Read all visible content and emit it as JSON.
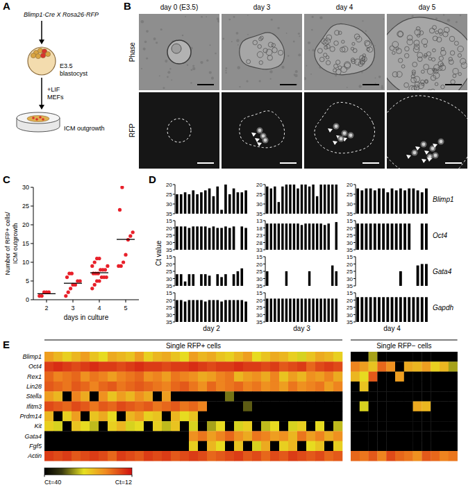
{
  "panel_a": {
    "letter": "A",
    "cross": "Blimp1-Cre X Rosa26-RFP",
    "stage": [
      "E3.5",
      "blastocyst"
    ],
    "culture": [
      "+LIF",
      "MEFs"
    ],
    "result": "ICM outgrowth"
  },
  "panel_b": {
    "letter": "B",
    "columns": [
      "day 0 (E3.5)",
      "day 3",
      "day 4",
      "day 5"
    ],
    "rows": [
      "Phase",
      "RFP"
    ]
  },
  "chart_data": [
    {
      "type": "scatter",
      "letter": "C",
      "xlabel": "days in culture",
      "ylabel": "Number of RFP+ cells/ ICM outgrowth",
      "categories": [
        "2",
        "3",
        "4",
        "5"
      ],
      "values": [
        [
          1,
          1,
          2,
          2,
          2
        ],
        [
          1,
          2,
          3,
          4,
          4,
          5,
          5,
          6,
          7,
          7
        ],
        [
          3,
          4,
          5,
          5,
          6,
          6,
          6,
          7,
          7,
          7,
          8,
          8,
          8,
          9,
          9,
          10,
          11,
          11
        ],
        [
          9,
          9,
          10,
          12,
          16,
          17,
          18,
          24,
          30
        ]
      ],
      "means": [
        1.6,
        4.4,
        7.2,
        16.1
      ],
      "color": "#e8202a",
      "marker": "circle",
      "ylim": [
        0,
        30
      ],
      "yticks": [
        0,
        5,
        10,
        15,
        20,
        25,
        30
      ]
    },
    {
      "type": "bar",
      "letter": "D",
      "ylabel": "Ct value",
      "rows": [
        "Blimp1",
        "Oct4",
        "Gata4",
        "Gapdh"
      ],
      "columns": [
        "day 2",
        "day 3",
        "day 4"
      ],
      "color": "#000000",
      "panels": [
        [
          {
            "ylim": [
              35,
              20
            ],
            "yticks": [
              20,
              25,
              30,
              35
            ],
            "values": [
              25,
              25,
              24,
              25,
              23,
              25,
              24,
              23,
              22,
              26,
              21,
              33,
              20,
              25,
              22,
              24,
              24,
              23
            ]
          },
          {
            "ylim": [
              35,
              20
            ],
            "yticks": [
              20,
              25,
              30,
              35
            ],
            "values": [
              21,
              22,
              21,
              29,
              21,
              20,
              20,
              20,
              22,
              20,
              20,
              21,
              20,
              26,
              20,
              20,
              20,
              20,
              20
            ]
          },
          {
            "ylim": [
              35,
              20
            ],
            "yticks": [
              20,
              25,
              30,
              35
            ],
            "values": [
              22,
              23,
              22,
              22,
              23,
              22,
              22,
              24,
              22,
              23,
              22,
              23,
              22,
              22,
              23,
              24,
              22
            ]
          }
        ],
        [
          {
            "ylim": [
              35,
              15
            ],
            "yticks": [
              15,
              20,
              25,
              30,
              35
            ],
            "values": [
              19,
              19,
              19,
              20,
              19,
              19,
              19,
              19,
              20,
              19,
              20,
              20,
              19,
              20,
              19,
              null,
              19,
              20
            ]
          },
          {
            "ylim": [
              33,
              13
            ],
            "yticks": [
              13,
              18,
              23,
              28,
              33
            ],
            "values": [
              15,
              15,
              15,
              15,
              15,
              15,
              15,
              15,
              15,
              16,
              15,
              15,
              15,
              15,
              15,
              16,
              15,
              null,
              14
            ]
          },
          {
            "ylim": [
              35,
              15
            ],
            "yticks": [
              15,
              20,
              25,
              30,
              35
            ],
            "values": [
              17,
              17,
              17,
              17,
              17,
              17,
              17,
              17,
              17,
              17,
              17,
              17,
              17,
              null,
              null,
              17,
              17
            ]
          }
        ],
        [
          {
            "ylim": [
              35,
              15
            ],
            "yticks": [
              15,
              20,
              25,
              30,
              35
            ],
            "values": [
              27,
              27,
              32,
              27,
              27,
              null,
              27,
              27,
              28,
              null,
              27,
              29,
              27,
              null,
              27,
              25,
              23,
              null
            ]
          },
          {
            "ylim": [
              35,
              15
            ],
            "yticks": [
              15,
              20,
              25,
              30,
              35
            ],
            "values": [
              25,
              null,
              null,
              null,
              null,
              25,
              null,
              null,
              null,
              null,
              null,
              25,
              null,
              null,
              null,
              null,
              null,
              21,
              25
            ]
          },
          {
            "ylim": [
              35,
              15
            ],
            "yticks": [
              15,
              20,
              25,
              30,
              35
            ],
            "values": [
              null,
              null,
              null,
              null,
              null,
              null,
              null,
              null,
              null,
              null,
              25,
              null,
              null,
              null,
              21,
              20,
              20
            ]
          }
        ],
        [
          {
            "ylim": [
              35,
              15
            ],
            "yticks": [
              15,
              20,
              25,
              30,
              35
            ],
            "values": [
              20,
              20,
              21,
              20,
              20,
              20,
              20,
              21,
              20,
              20,
              20,
              21,
              20,
              20,
              20,
              20,
              20,
              21
            ]
          },
          {
            "ylim": [
              35,
              15
            ],
            "yticks": [
              15,
              20,
              25,
              30,
              35
            ],
            "values": [
              19,
              19,
              19,
              19,
              19,
              19,
              19,
              19,
              19,
              19,
              19,
              19,
              19,
              19,
              19,
              19,
              19,
              19,
              19
            ]
          },
          {
            "ylim": [
              35,
              15
            ],
            "yticks": [
              15,
              20,
              25,
              30,
              35
            ],
            "values": [
              18,
              18,
              18,
              18,
              18,
              18,
              18,
              18,
              18,
              18,
              18,
              18,
              18,
              18,
              18,
              18,
              18
            ]
          }
        ]
      ]
    },
    {
      "type": "heatmap",
      "letter": "E",
      "rows": [
        "Blimp1",
        "Oct4",
        "Rex1",
        "Lin28",
        "Stella",
        "Ifitm3",
        "Prdm14",
        "Kit",
        "Gata4",
        "Fgf5",
        "Actin"
      ],
      "groups": [
        {
          "name": "Single RFP+ cells",
          "cells": [
            [
              22,
              24,
              26,
              24,
              22,
              25,
              27,
              23,
              24,
              25,
              22,
              26,
              24,
              23,
              25,
              27,
              22,
              24,
              23,
              25,
              26,
              24,
              22,
              27,
              25,
              23,
              24,
              26,
              28,
              25,
              23,
              24,
              26
            ],
            [
              15,
              14,
              15,
              16,
              15,
              14,
              15,
              15,
              16,
              15,
              14,
              15,
              15,
              16,
              15,
              15,
              14,
              15,
              16,
              15,
              15,
              14,
              15,
              15,
              16,
              15,
              17,
              16,
              15,
              18,
              16,
              15,
              16
            ],
            [
              18,
              20,
              19,
              18,
              21,
              19,
              20,
              22,
              20,
              19,
              18,
              21,
              20,
              22,
              19,
              20,
              21,
              23,
              22,
              20,
              19,
              24,
              22,
              21,
              23,
              20,
              25,
              22,
              24,
              21,
              22,
              20,
              23
            ],
            [
              17,
              18,
              19,
              17,
              18,
              20,
              18,
              17,
              19,
              18,
              17,
              18,
              19,
              20,
              18,
              17,
              19,
              21,
              18,
              20,
              19,
              18,
              20,
              19,
              21,
              20,
              22,
              19,
              21,
              20,
              19,
              22,
              20
            ],
            [
              22,
              24,
              40,
              20,
              23,
              40,
              21,
              25,
              22,
              24,
              21,
              23,
              40,
              22,
              40,
              40,
              40,
              40,
              40,
              40,
              32,
              40,
              40,
              40,
              40,
              40,
              40,
              40,
              40,
              40,
              40,
              40,
              40
            ],
            [
              16,
              17,
              18,
              16,
              17,
              19,
              17,
              18,
              16,
              17,
              18,
              17,
              19,
              18,
              17,
              19,
              18,
              20,
              40,
              40,
              40,
              40,
              33,
              40,
              40,
              40,
              40,
              40,
              40,
              40,
              40,
              40,
              40
            ],
            [
              24,
              40,
              26,
              22,
              40,
              25,
              23,
              27,
              40,
              24,
              22,
              26,
              25,
              40,
              24,
              27,
              25,
              40,
              40,
              40,
              40,
              40,
              40,
              40,
              40,
              40,
              40,
              40,
              40,
              40,
              40,
              40,
              40
            ],
            [
              26,
              28,
              40,
              25,
              27,
              29,
              40,
              26,
              24,
              28,
              27,
              40,
              26,
              29,
              25,
              40,
              28,
              40,
              30,
              27,
              40,
              28,
              26,
              40,
              29,
              27,
              40,
              28,
              26,
              40,
              27,
              40,
              29
            ],
            [
              40,
              40,
              40,
              40,
              40,
              40,
              40,
              40,
              40,
              40,
              40,
              40,
              40,
              40,
              40,
              40,
              21,
              19,
              22,
              20,
              18,
              21,
              23,
              19,
              20,
              22,
              21,
              24,
              19,
              22,
              20,
              23,
              21
            ],
            [
              40,
              40,
              40,
              40,
              40,
              40,
              40,
              40,
              40,
              40,
              40,
              40,
              40,
              40,
              40,
              40,
              26,
              40,
              24,
              27,
              40,
              25,
              40,
              28,
              23,
              40,
              26,
              24,
              40,
              27,
              25,
              40,
              26
            ],
            [
              15,
              16,
              15,
              17,
              16,
              15,
              16,
              18,
              15,
              16,
              17,
              15,
              16,
              15,
              17,
              16,
              15,
              16,
              18,
              17,
              16,
              15,
              17,
              16,
              18,
              16,
              17,
              15,
              16,
              17,
              16,
              18,
              17
            ]
          ]
        },
        {
          "name": "Single RFP− cells",
          "cells": [
            [
              40,
              40,
              30,
              40,
              40,
              40,
              40,
              40,
              40,
              40,
              40,
              40
            ],
            [
              20,
              22,
              25,
              18,
              21,
              40,
              23,
              24,
              22,
              26,
              24,
              30
            ],
            [
              24,
              27,
              17,
              40,
              40,
              22,
              40,
              40,
              40,
              40,
              40,
              40
            ],
            [
              40,
              25,
              40,
              40,
              40,
              40,
              40,
              40,
              40,
              40,
              40,
              40
            ],
            [
              40,
              40,
              40,
              40,
              40,
              40,
              40,
              40,
              40,
              40,
              40,
              40
            ],
            [
              40,
              28,
              40,
              40,
              40,
              40,
              40,
              23,
              24,
              40,
              40,
              40
            ],
            [
              40,
              40,
              40,
              40,
              40,
              40,
              40,
              40,
              40,
              40,
              40,
              40
            ],
            [
              40,
              40,
              40,
              40,
              40,
              40,
              40,
              40,
              40,
              40,
              40,
              40
            ],
            [
              40,
              40,
              40,
              40,
              40,
              40,
              40,
              40,
              40,
              40,
              40,
              40
            ],
            [
              40,
              40,
              40,
              40,
              40,
              40,
              40,
              40,
              40,
              40,
              40,
              40
            ],
            [
              18,
              19,
              17,
              20,
              16,
              18,
              19,
              21,
              17,
              18,
              20,
              19
            ]
          ]
        }
      ],
      "color_range": [
        40,
        12
      ],
      "color_ticks": [
        {
          "value": 40,
          "label": "Ct=40"
        },
        {
          "value": 12,
          "label": "Ct=12"
        }
      ]
    }
  ]
}
